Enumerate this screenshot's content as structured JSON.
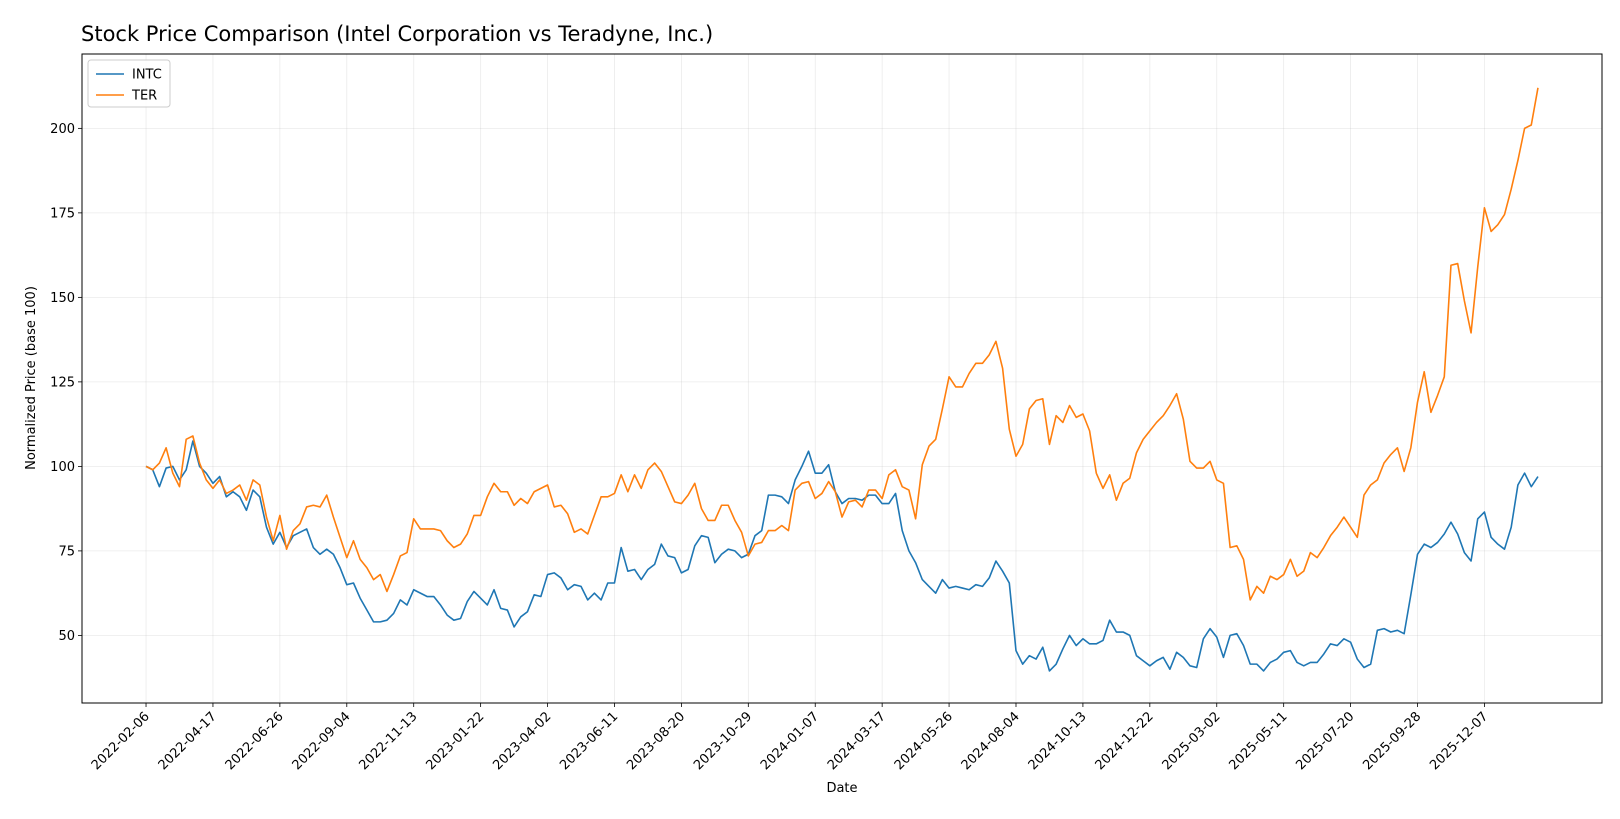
{
  "chart_data": {
    "type": "line",
    "title": "Stock Price Comparison (Intel Corporation vs Teradyne, Inc.)",
    "xlabel": "Date",
    "ylabel": "Normalized Price (base 100)",
    "ylim": [
      30,
      222
    ],
    "yticks": [
      50,
      75,
      100,
      125,
      150,
      175,
      200
    ],
    "xticks": [
      "2022-02-06",
      "2022-04-17",
      "2022-06-26",
      "2022-09-04",
      "2022-11-13",
      "2023-01-22",
      "2023-04-02",
      "2023-06-11",
      "2023-08-20",
      "2023-10-29",
      "2024-01-07",
      "2024-03-17",
      "2024-05-26",
      "2024-08-04",
      "2024-10-13",
      "2024-12-22",
      "2025-03-02",
      "2025-05-11",
      "2025-07-20",
      "2025-09-28",
      "2025-12-07"
    ],
    "x_start": "2022-02-06",
    "x_step_days": 7,
    "grid": true,
    "legend": "top-left",
    "series": [
      {
        "name": "INTC",
        "color": "#1f77b4",
        "values": [
          100,
          99,
          94,
          99.5,
          100,
          96,
          99,
          107.5,
          100,
          98,
          95,
          97,
          91,
          92.5,
          91,
          87,
          93,
          91,
          82,
          77,
          80.5,
          76,
          79.5,
          80.5,
          81.5,
          76,
          74,
          75.5,
          74,
          70,
          65,
          65.5,
          61,
          57.5,
          54,
          54,
          54.5,
          56.5,
          60.5,
          59,
          63.5,
          62.5,
          61.5,
          61.5,
          59,
          56,
          54.5,
          55,
          60,
          63,
          61,
          59,
          63.5,
          58,
          57.5,
          52.5,
          55.5,
          57,
          62,
          61.5,
          68,
          68.5,
          67,
          63.5,
          65,
          64.5,
          60.5,
          62.5,
          60.5,
          65.5,
          65.5,
          76,
          69,
          69.5,
          66.5,
          69.5,
          71,
          77,
          73.5,
          73,
          68.5,
          69.5,
          76.5,
          79.5,
          79,
          71.5,
          74,
          75.5,
          75,
          73,
          74,
          79.5,
          81,
          91.5,
          91.5,
          91,
          89,
          96,
          100,
          104.5,
          98,
          98,
          100.5,
          92.5,
          89,
          90.5,
          90.5,
          90,
          91.5,
          91.5,
          89,
          89,
          92,
          81,
          75,
          71.5,
          66.5,
          64.5,
          62.5,
          66.5,
          64,
          64.5,
          64,
          63.5,
          65,
          64.5,
          67,
          72,
          69,
          65.5,
          45.5,
          41.5,
          44,
          43,
          46.5,
          39.5,
          41.5,
          46,
          50,
          47,
          49,
          47.5,
          47.5,
          48.5,
          54.5,
          51,
          51,
          50,
          44,
          42.5,
          41,
          42.5,
          43.5,
          40,
          45,
          43.5,
          41,
          40.5,
          49,
          52,
          49.5,
          43.5,
          50,
          50.5,
          47,
          41.5,
          41.5,
          39.5,
          42,
          43,
          45,
          45.5,
          42,
          41,
          42,
          42,
          44.5,
          47.5,
          47,
          49,
          48,
          43,
          40.5,
          41.5,
          51.5,
          52,
          51,
          51.5,
          50.5,
          62,
          74,
          77,
          76,
          77.5,
          80,
          83.5,
          80,
          74.5,
          72,
          84.5,
          86.5,
          79,
          77,
          75.5,
          82,
          94.5,
          98,
          94,
          97
        ]
      },
      {
        "name": "TER",
        "color": "#ff7f0e",
        "values": [
          100,
          99,
          101,
          105.5,
          98,
          94,
          108,
          109,
          101,
          96,
          93.5,
          96,
          92,
          93,
          94.5,
          90,
          96,
          94.5,
          85,
          78,
          85.5,
          75.5,
          81,
          83,
          88,
          88.5,
          88,
          91.5,
          85,
          79,
          73,
          78,
          72.5,
          70,
          66.5,
          68,
          63,
          68,
          73.5,
          74.5,
          84.5,
          81.5,
          81.5,
          81.5,
          81,
          78,
          76,
          77,
          80,
          85.5,
          85.5,
          91,
          95,
          92.5,
          92.5,
          88.5,
          90.5,
          89,
          92.5,
          93.5,
          94.5,
          88,
          88.5,
          86,
          80.5,
          81.5,
          80,
          85.5,
          91,
          91,
          92,
          97.5,
          92.5,
          97.5,
          93.5,
          99,
          101,
          98.5,
          94,
          89.5,
          89,
          91.5,
          95,
          87.5,
          84,
          84,
          88.5,
          88.5,
          84,
          80.5,
          73.5,
          77,
          77.5,
          81,
          81,
          82.5,
          81,
          93,
          95,
          95.5,
          90.5,
          92,
          95.5,
          92.5,
          85,
          89.5,
          90,
          88,
          93,
          93,
          90.5,
          97.5,
          99,
          94,
          93,
          84.5,
          100.5,
          106,
          108,
          117,
          126.5,
          123.5,
          123.5,
          127.5,
          130.5,
          130.5,
          133,
          137,
          129,
          111,
          103,
          106.5,
          117,
          119.5,
          120,
          106.5,
          115,
          113,
          118,
          114.5,
          115.5,
          110.5,
          98,
          93.5,
          97.5,
          90,
          95,
          96.5,
          104,
          108,
          110.5,
          113,
          115,
          118,
          121.5,
          114,
          101.5,
          99.5,
          99.5,
          101.5,
          96,
          95,
          76,
          76.5,
          72.5,
          60.5,
          64.5,
          62.5,
          67.5,
          66.5,
          68,
          72.5,
          67.5,
          69,
          74.5,
          73,
          76,
          79.5,
          82,
          85,
          82,
          79,
          91.5,
          94.5,
          96,
          101,
          103.5,
          105.5,
          98.5,
          105.5,
          119,
          128,
          116,
          121,
          126.5,
          159.5,
          160,
          149,
          139.5,
          159,
          176.5,
          169.5,
          171.5,
          174.5,
          182,
          190.5,
          200,
          201,
          212
        ]
      }
    ]
  }
}
